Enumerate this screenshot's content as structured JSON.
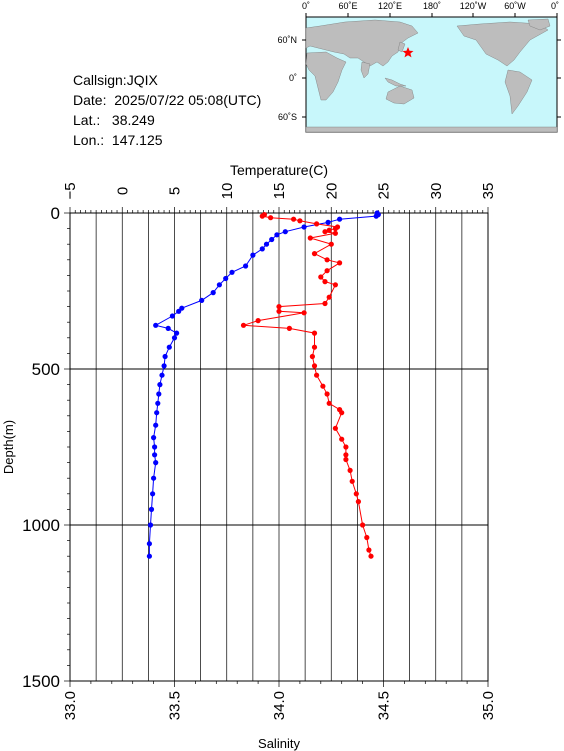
{
  "station": {
    "callsign": "Callsign:JQIX",
    "date": "Date:  2025/07/22 05:08(UTC)",
    "lat": "Lat.:   38.249",
    "lon": "Lon.:  147.125"
  },
  "map": {
    "lon_labels": [
      "0˚",
      "60˚E",
      "120˚E",
      "180˚",
      "120˚W",
      "60˚W",
      "0˚"
    ],
    "lat_labels": [
      "60˚N",
      "0˚",
      "60˚S"
    ],
    "ocean_color": "#c8f7fb",
    "land_color": "#bdbdbd",
    "marker": {
      "lon": 147.125,
      "lat": 38.249,
      "color": "#ff0000",
      "icon": "star-icon"
    }
  },
  "chart_data": {
    "type": "line",
    "ylabel": "Depth(m)",
    "ylim": [
      0,
      1500
    ],
    "yticks": [
      "0",
      "500",
      "1000",
      "1500"
    ],
    "top_axis": {
      "label": "Temperature(C)",
      "range": [
        -5,
        35
      ],
      "ticks": [
        "−5",
        "0",
        "5",
        "10",
        "15",
        "20",
        "25",
        "30",
        "35"
      ]
    },
    "bottom_axis": {
      "label": "Salinity",
      "range": [
        33.0,
        35.0
      ],
      "ticks": [
        "33.0",
        "33.5",
        "34.0",
        "34.5",
        "35.0"
      ]
    },
    "grid": true,
    "series": [
      {
        "axis": "top",
        "color": "#0000ff",
        "points": [
          [
            24.4,
            0
          ],
          [
            24.5,
            5
          ],
          [
            24.3,
            10
          ],
          [
            20.8,
            20
          ],
          [
            19.7,
            30
          ],
          [
            17.4,
            45
          ],
          [
            15.6,
            60
          ],
          [
            14.8,
            70
          ],
          [
            14.3,
            85
          ],
          [
            13.8,
            100
          ],
          [
            13.4,
            115
          ],
          [
            12.5,
            135
          ],
          [
            11.8,
            170
          ],
          [
            10.5,
            190
          ],
          [
            9.9,
            210
          ],
          [
            9.3,
            230
          ],
          [
            8.7,
            255
          ],
          [
            7.6,
            280
          ],
          [
            5.7,
            305
          ],
          [
            5.4,
            315
          ],
          [
            4.8,
            330
          ],
          [
            3.2,
            360
          ],
          [
            4.4,
            370
          ],
          [
            5.2,
            385
          ],
          [
            5.0,
            400
          ],
          [
            4.5,
            430
          ],
          [
            4.1,
            460
          ],
          [
            4.0,
            490
          ],
          [
            3.8,
            520
          ],
          [
            3.6,
            550
          ],
          [
            3.5,
            580
          ],
          [
            3.4,
            610
          ],
          [
            3.3,
            640
          ],
          [
            3.2,
            680
          ],
          [
            3.0,
            720
          ],
          [
            3.1,
            750
          ],
          [
            3.1,
            775
          ],
          [
            3.2,
            800
          ],
          [
            3.0,
            850
          ],
          [
            2.9,
            900
          ],
          [
            2.8,
            950
          ],
          [
            2.7,
            1000
          ],
          [
            2.6,
            1060
          ],
          [
            2.6,
            1100
          ]
        ]
      },
      {
        "axis": "bottom",
        "color": "#ff0000",
        "points": [
          [
            33.93,
            5
          ],
          [
            33.92,
            10
          ],
          [
            33.96,
            15
          ],
          [
            34.07,
            20
          ],
          [
            34.1,
            25
          ],
          [
            34.18,
            35
          ],
          [
            34.28,
            45
          ],
          [
            34.27,
            50
          ],
          [
            34.24,
            55
          ],
          [
            34.22,
            60
          ],
          [
            34.27,
            65
          ],
          [
            34.15,
            80
          ],
          [
            34.25,
            100
          ],
          [
            34.17,
            130
          ],
          [
            34.23,
            150
          ],
          [
            34.29,
            160
          ],
          [
            34.23,
            185
          ],
          [
            34.2,
            205
          ],
          [
            34.22,
            220
          ],
          [
            34.27,
            230
          ],
          [
            34.24,
            270
          ],
          [
            34.22,
            290
          ],
          [
            34.0,
            300
          ],
          [
            34.0,
            315
          ],
          [
            34.12,
            320
          ],
          [
            33.9,
            345
          ],
          [
            33.83,
            360
          ],
          [
            34.05,
            370
          ],
          [
            34.17,
            385
          ],
          [
            34.17,
            430
          ],
          [
            34.16,
            460
          ],
          [
            34.17,
            490
          ],
          [
            34.18,
            520
          ],
          [
            34.21,
            555
          ],
          [
            34.23,
            580
          ],
          [
            34.24,
            610
          ],
          [
            34.29,
            630
          ],
          [
            34.3,
            640
          ],
          [
            34.27,
            690
          ],
          [
            34.3,
            725
          ],
          [
            34.32,
            750
          ],
          [
            34.32,
            775
          ],
          [
            34.32,
            790
          ],
          [
            34.34,
            825
          ],
          [
            34.35,
            860
          ],
          [
            34.37,
            900
          ],
          [
            34.38,
            925
          ],
          [
            34.4,
            1000
          ],
          [
            34.42,
            1040
          ],
          [
            34.43,
            1080
          ],
          [
            34.44,
            1100
          ]
        ]
      }
    ]
  }
}
